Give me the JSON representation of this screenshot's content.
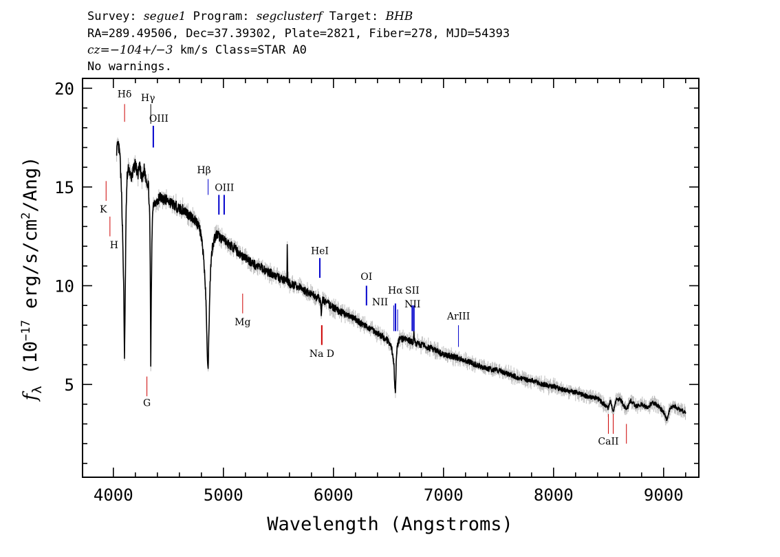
{
  "header": {
    "line1": [
      {
        "t": "Survey: ",
        "i": false
      },
      {
        "t": "segue1",
        "i": true
      },
      {
        "t": " Program: ",
        "i": false
      },
      {
        "t": "segclusterf",
        "i": true
      },
      {
        "t": " Target: ",
        "i": false
      },
      {
        "t": "BHB",
        "i": true
      }
    ],
    "line2": "RA=289.49506, Dec=37.39302, Plate=2821, Fiber=278, MJD=54393",
    "line3": [
      {
        "t": "cz=−104+/−3",
        "i": true
      },
      {
        "t": " km/s Class=STAR A0",
        "i": false
      }
    ],
    "line4": "No warnings."
  },
  "chart_data": {
    "type": "line",
    "xlabel": "Wavelength (Angstroms)",
    "ylabel_parts": {
      "f": "f",
      "sub": "λ",
      "pre": " (10",
      "exp": "−17",
      "mid": " erg/s/cm",
      "exp2": "2",
      "post": "/Ang)"
    },
    "xlim": [
      3720,
      9320
    ],
    "ylim": [
      0.3,
      20.5
    ],
    "xticks": [
      4000,
      5000,
      6000,
      7000,
      8000,
      9000
    ],
    "yticks": [
      5,
      10,
      15,
      20
    ],
    "grid": false,
    "series": [
      {
        "style": "flux",
        "color": "#000000",
        "x": [
          4030,
          4045,
          4060,
          4075,
          4085,
          4095,
          4101,
          4108,
          4115,
          4125,
          4140,
          4160,
          4180,
          4200,
          4220,
          4240,
          4260,
          4280,
          4300,
          4320,
          4330,
          4335,
          4340,
          4345,
          4350,
          4355,
          4360,
          4380,
          4400,
          4420,
          4450,
          4500,
          4550,
          4600,
          4650,
          4700,
          4750,
          4780,
          4800,
          4820,
          4840,
          4850,
          4855,
          4861,
          4867,
          4875,
          4885,
          4900,
          4920,
          4940,
          4960,
          4980,
          5000,
          5050,
          5100,
          5150,
          5200,
          5250,
          5300,
          5350,
          5400,
          5450,
          5500,
          5550,
          5577,
          5580,
          5585,
          5600,
          5650,
          5700,
          5750,
          5800,
          5850,
          5880,
          5889,
          5895,
          5900,
          5950,
          6000,
          6050,
          6100,
          6150,
          6200,
          6250,
          6300,
          6350,
          6400,
          6450,
          6500,
          6530,
          6550,
          6556,
          6560,
          6563,
          6566,
          6570,
          6580,
          6600,
          6650,
          6700,
          6725,
          6730,
          6740,
          6800,
          6900,
          7000,
          7100,
          7200,
          7300,
          7400,
          7500,
          7600,
          7700,
          7800,
          7900,
          8000,
          8100,
          8200,
          8300,
          8400,
          8498,
          8520,
          8542,
          8570,
          8600,
          8662,
          8700,
          8750,
          8800,
          8850,
          8900,
          8950,
          9000,
          9030,
          9060,
          9100,
          9150,
          9200
        ],
        "y": [
          16.9,
          17.1,
          16.6,
          14.5,
          12.5,
          9.5,
          6.3,
          9.5,
          13.5,
          15.5,
          16.0,
          15.4,
          15.8,
          16.2,
          15.6,
          16.0,
          15.3,
          15.9,
          15.4,
          15.0,
          13.5,
          11.0,
          6.0,
          9.5,
          12.0,
          13.5,
          14.1,
          14.3,
          14.2,
          14.5,
          14.4,
          14.3,
          14.1,
          13.9,
          13.8,
          13.5,
          13.3,
          13.0,
          12.4,
          11.5,
          9.5,
          7.5,
          6.2,
          5.7,
          7.3,
          9.5,
          11.0,
          12.0,
          12.4,
          12.6,
          12.5,
          12.4,
          12.3,
          12.1,
          11.9,
          11.6,
          11.4,
          11.2,
          11.0,
          10.9,
          10.7,
          10.6,
          10.4,
          10.3,
          10.2,
          12.0,
          10.2,
          10.1,
          10.0,
          9.9,
          9.7,
          9.6,
          9.4,
          9.3,
          8.6,
          8.9,
          9.3,
          9.1,
          8.9,
          8.7,
          8.6,
          8.4,
          8.3,
          8.1,
          7.9,
          7.8,
          7.6,
          7.4,
          7.2,
          6.8,
          6.0,
          5.1,
          4.7,
          4.6,
          5.1,
          6.1,
          7.0,
          7.3,
          7.3,
          7.2,
          7.1,
          7.6,
          7.1,
          7.0,
          6.8,
          6.5,
          6.4,
          6.2,
          6.0,
          5.8,
          5.7,
          5.5,
          5.3,
          5.2,
          5.0,
          4.9,
          4.7,
          4.6,
          4.4,
          4.3,
          3.8,
          4.2,
          3.6,
          4.2,
          4.3,
          3.7,
          4.2,
          3.9,
          4.0,
          3.8,
          4.1,
          3.9,
          3.6,
          3.2,
          3.8,
          3.9,
          3.7,
          3.6
        ]
      }
    ],
    "line_markers": [
      {
        "label": "Hδ",
        "x": 4102,
        "color": "#cc0000",
        "lw": 1,
        "y0": 18.3,
        "y1": 19.2,
        "ly": 19.55,
        "dx": 0
      },
      {
        "label": "Hγ",
        "x": 4340,
        "color": "#000000",
        "lw": 1,
        "y0": 18.2,
        "y1": 19.2,
        "ly": 19.35,
        "dx": -4
      },
      {
        "label": "OIII",
        "x": 4363,
        "color": "#0000cc",
        "lw": 2,
        "y0": 17.0,
        "y1": 18.1,
        "ly": 18.3,
        "dx": 8
      },
      {
        "label": "Hβ",
        "x": 4861,
        "color": "#0000cc",
        "lw": 1,
        "y0": 14.6,
        "y1": 15.4,
        "ly": 15.7,
        "dx": -6
      },
      {
        "label": "OIII",
        "x": 4959,
        "color": "#0000cc",
        "lw": 2,
        "y0": 13.6,
        "y1": 14.6,
        "ly": 14.8,
        "dx": 8
      },
      {
        "label": "OIII",
        "x": 5007,
        "color": "#0000cc",
        "lw": 2,
        "y0": 13.6,
        "y1": 14.6,
        "ly": null,
        "dx": 0
      },
      {
        "label": "HeI",
        "x": 5876,
        "color": "#0000cc",
        "lw": 2,
        "y0": 10.4,
        "y1": 11.4,
        "ly": 11.6,
        "dx": 0
      },
      {
        "label": "OI",
        "x": 6300,
        "color": "#0000cc",
        "lw": 2,
        "y0": 9.0,
        "y1": 10.0,
        "ly": 10.3,
        "dx": 0
      },
      {
        "label": "NII",
        "x": 6548,
        "color": "#0000cc",
        "lw": 1,
        "y0": 7.7,
        "y1": 9.0,
        "ly": 9.0,
        "dx": -20
      },
      {
        "label": "Hα",
        "x": 6563,
        "color": "#0000cc",
        "lw": 2,
        "y0": 7.7,
        "y1": 9.1,
        "ly": 9.6,
        "dx": 0
      },
      {
        "label": "NII",
        "x": 6583,
        "color": "#0000cc",
        "lw": 1,
        "y0": 7.7,
        "y1": 8.8,
        "ly": null,
        "dx": 0
      },
      {
        "label": "SII",
        "x": 6716,
        "color": "#0000cc",
        "lw": 2,
        "y0": 7.7,
        "y1": 9.0,
        "ly": 9.6,
        "dx": 0
      },
      {
        "label": "NII",
        "x": 6731,
        "color": "#0000cc",
        "lw": 2,
        "y0": 7.7,
        "y1": 9.0,
        "ly": 8.9,
        "dx": -2
      },
      {
        "label": "ArIII",
        "x": 7136,
        "color": "#0000cc",
        "lw": 1,
        "y0": 6.9,
        "y1": 8.0,
        "ly": 8.3,
        "dx": 0
      },
      {
        "label": "K",
        "x": 3934,
        "color": "#cc0000",
        "lw": 1,
        "y0": 14.3,
        "y1": 15.3,
        "ly": 13.7,
        "dx": -4
      },
      {
        "label": "H",
        "x": 3969,
        "color": "#cc0000",
        "lw": 1,
        "y0": 12.5,
        "y1": 13.5,
        "ly": 11.9,
        "dx": 6
      },
      {
        "label": "G",
        "x": 4305,
        "color": "#cc0000",
        "lw": 1,
        "y0": 4.4,
        "y1": 5.4,
        "ly": 3.9,
        "dx": 0
      },
      {
        "label": "Mg",
        "x": 5175,
        "color": "#cc0000",
        "lw": 1,
        "y0": 8.6,
        "y1": 9.6,
        "ly": 8.0,
        "dx": 0
      },
      {
        "label": "Na D",
        "x": 5894,
        "color": "#cc0000",
        "lw": 2,
        "y0": 7.0,
        "y1": 8.0,
        "ly": 6.4,
        "dx": 0
      },
      {
        "label": "CaII",
        "x": 8498,
        "color": "#cc0000",
        "lw": 1,
        "y0": 2.5,
        "y1": 3.5,
        "ly": 1.95,
        "dx": 0
      },
      {
        "label": "CaII",
        "x": 8542,
        "color": "#cc0000",
        "lw": 1,
        "y0": 2.5,
        "y1": 3.5,
        "ly": null,
        "dx": 0
      },
      {
        "label": "CaII",
        "x": 8662,
        "color": "#cc0000",
        "lw": 1,
        "y0": 2.0,
        "y1": 3.0,
        "ly": null,
        "dx": 0
      }
    ]
  }
}
